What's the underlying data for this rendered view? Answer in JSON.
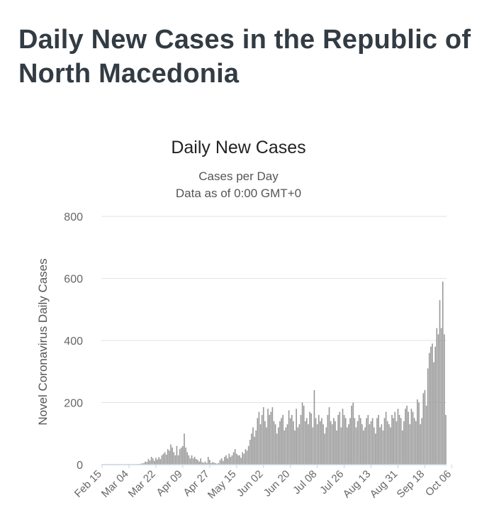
{
  "page_title": "Daily New Cases in the Republic of North Macedonia",
  "chart_data": {
    "type": "bar",
    "title": "Daily New Cases",
    "subtitle_lines": [
      "Cases per Day",
      "Data as of 0:00 GMT+0"
    ],
    "xlabel": "",
    "ylabel": "Novel Coronavirus Daily Cases",
    "ylim": [
      0,
      800
    ],
    "yticks": [
      0,
      200,
      400,
      600,
      800
    ],
    "grid": true,
    "colors": {
      "bar": "#999999",
      "grid": "#e2e2e2",
      "axis": "#c9d4e6",
      "tick_text": "#666666"
    },
    "start_date": "Feb 15",
    "xtick_labels": [
      "Feb 15",
      "Mar 04",
      "Mar 22",
      "Apr 09",
      "Apr 27",
      "May 15",
      "Jun 02",
      "Jun 20",
      "Jul 08",
      "Jul 26",
      "Aug 13",
      "Aug 31",
      "Sep 18",
      "Oct 06"
    ],
    "xtick_day_index": [
      0,
      18,
      36,
      54,
      72,
      90,
      108,
      126,
      144,
      162,
      180,
      198,
      216,
      234
    ],
    "values": [
      0,
      0,
      0,
      0,
      0,
      0,
      0,
      0,
      0,
      0,
      0,
      0,
      0,
      0,
      0,
      0,
      0,
      0,
      0,
      0,
      0,
      1,
      0,
      1,
      2,
      0,
      3,
      4,
      5,
      10,
      8,
      18,
      13,
      25,
      20,
      12,
      22,
      16,
      24,
      18,
      30,
      35,
      40,
      32,
      50,
      45,
      65,
      55,
      40,
      30,
      60,
      30,
      50,
      55,
      60,
      100,
      55,
      40,
      30,
      20,
      30,
      20,
      25,
      18,
      15,
      10,
      20,
      8,
      6,
      10,
      5,
      25,
      15,
      5,
      8,
      6,
      5,
      3,
      5,
      15,
      20,
      12,
      25,
      30,
      20,
      35,
      25,
      30,
      40,
      50,
      35,
      30,
      30,
      22,
      40,
      35,
      50,
      45,
      60,
      80,
      100,
      120,
      90,
      110,
      150,
      170,
      130,
      160,
      185,
      140,
      120,
      180,
      160,
      170,
      185,
      140,
      130,
      100,
      120,
      140,
      150,
      160,
      110,
      120,
      130,
      175,
      150,
      160,
      140,
      110,
      180,
      120,
      130,
      160,
      200,
      190,
      140,
      150,
      130,
      170,
      165,
      120,
      240,
      150,
      130,
      160,
      140,
      150,
      130,
      100,
      120,
      160,
      185,
      140,
      130,
      150,
      140,
      110,
      160,
      170,
      120,
      180,
      160,
      150,
      120,
      130,
      150,
      190,
      200,
      150,
      120,
      140,
      160,
      150,
      130,
      110,
      120,
      150,
      160,
      130,
      140,
      150,
      120,
      100,
      150,
      160,
      120,
      130,
      110,
      150,
      170,
      140,
      130,
      120,
      160,
      150,
      170,
      140,
      180,
      160,
      150,
      110,
      140,
      180,
      190,
      170,
      130,
      180,
      170,
      150,
      140,
      210,
      200,
      130,
      150,
      230,
      240,
      190,
      310,
      360,
      380,
      390,
      330,
      380,
      440,
      420,
      530,
      440,
      590,
      420,
      160
    ]
  }
}
